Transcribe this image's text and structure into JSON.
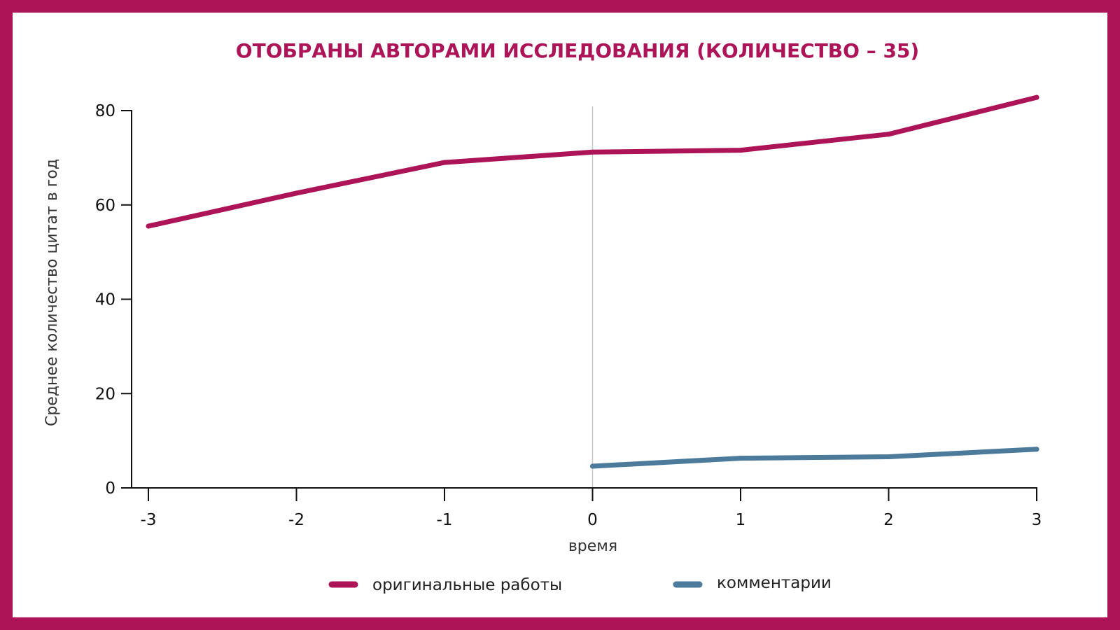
{
  "chart_data": {
    "type": "line",
    "title": "ОТОБРАНЫ АВТОРАМИ ИССЛЕДОВАНИЯ (КОЛИЧЕСТВО – 35)",
    "xlabel": "время",
    "ylabel": "Среднее количество цитат в год",
    "xlim": [
      -3,
      3
    ],
    "ylim": [
      0,
      80
    ],
    "x_ticks": [
      "-3",
      "-2",
      "-1",
      "0",
      "1",
      "2",
      "3"
    ],
    "y_ticks": [
      "0",
      "20",
      "40",
      "60",
      "80"
    ],
    "reference_line_x": 0,
    "legend_position": "bottom",
    "series": [
      {
        "name": "оригинальные работы",
        "color": "#ac1457",
        "x": [
          -3,
          -2,
          -1,
          0,
          1,
          2,
          3
        ],
        "y": [
          55.5,
          62.5,
          69,
          71.2,
          71.6,
          75,
          82.8
        ]
      },
      {
        "name": "комментарии",
        "color": "#4b7a9b",
        "x": [
          0,
          1,
          2,
          3
        ],
        "y": [
          4.6,
          6.3,
          6.6,
          8.2
        ]
      }
    ]
  },
  "colors": {
    "frame": "#ac1457",
    "title": "#ac1457",
    "axis": "#111111",
    "reference_line": "#c8c8c8"
  }
}
